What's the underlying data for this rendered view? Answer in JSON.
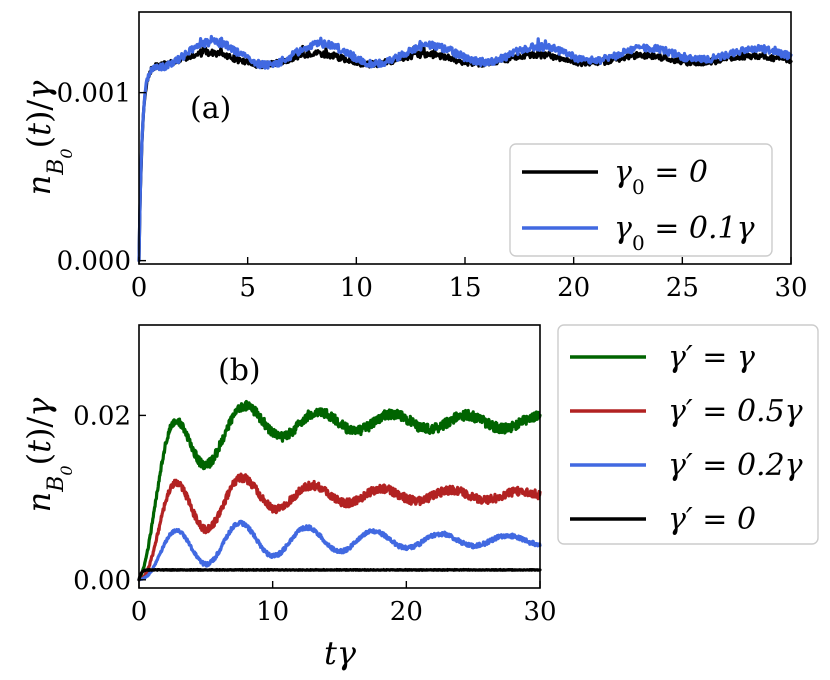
{
  "chart_data": [
    {
      "panel": "a",
      "type": "line",
      "panel_label": "(a)",
      "xlabel": "",
      "ylabel": "n_{B0}(t)/γ",
      "xlim": [
        0,
        30
      ],
      "ylim": [
        -2e-05,
        0.00148
      ],
      "xticks": [
        0,
        5,
        10,
        15,
        20,
        25,
        30
      ],
      "xtick_labels": [
        "0",
        "5",
        "10",
        "15",
        "20",
        "25",
        "30"
      ],
      "yticks": [
        0.0,
        0.001
      ],
      "ytick_labels": [
        "0.000",
        "0.001"
      ],
      "legend_position": "lower-right",
      "series": [
        {
          "name": "γ0 = 0",
          "label_main": "γ",
          "label_sub": "0",
          "label_rest": " = 0",
          "color": "#000000",
          "base": 0.0012,
          "amp": 4e-05,
          "period": 5.0,
          "phase": 3.2,
          "decay": 40,
          "spikes": 0.00012,
          "noise": 1.8e-05,
          "rise": 0.15
        },
        {
          "name": "γ0 = 0.1γ",
          "label_main": "γ",
          "label_sub": "0",
          "label_rest": " = 0.1γ",
          "color": "#4169E1",
          "base": 0.00123,
          "amp": 8e-05,
          "period": 5.0,
          "phase": 3.4,
          "decay": 30,
          "spikes": 6e-05,
          "noise": 2.2e-05,
          "rise": 0.15
        }
      ]
    },
    {
      "panel": "b",
      "type": "line",
      "panel_label": "(b)",
      "xlabel": "tγ",
      "ylabel": "n_{B0}(t)/γ",
      "xlim": [
        0,
        30
      ],
      "ylim": [
        -0.001,
        0.031
      ],
      "xticks": [
        0,
        10,
        20,
        30
      ],
      "xtick_labels": [
        "0",
        "10",
        "20",
        "30"
      ],
      "yticks": [
        0.0,
        0.02
      ],
      "ytick_labels": [
        "0.00",
        "0.02"
      ],
      "legend_position": "outside-right",
      "series": [
        {
          "name": "γ′ = γ",
          "label_main": "γ′",
          "label_rest": " = γ",
          "color": "#006400",
          "base": 0.0192,
          "amp": 0.0124,
          "period": 5.5,
          "phase": 2.5,
          "decay": 3.4,
          "noise": 0.0006,
          "rise": 2.0
        },
        {
          "name": "γ′ = 0.5γ",
          "label_main": "γ′",
          "label_rest": " = 0.5γ",
          "color": "#B22222",
          "base": 0.0103,
          "amp": 0.0085,
          "period": 5.2,
          "phase": 2.6,
          "decay": 4.5,
          "noise": 0.0005,
          "rise": 2.0
        },
        {
          "name": "γ′ = 0.2γ",
          "label_main": "γ′",
          "label_rest": " = 0.2γ",
          "color": "#4169E1",
          "base": 0.0048,
          "amp": 0.0036,
          "period": 5.0,
          "phase": 2.6,
          "decay": 12,
          "noise": 0.00025,
          "rise": 2.0
        },
        {
          "name": "γ′ = 0",
          "label_main": "γ′",
          "label_rest": " = 0",
          "color": "#000000",
          "base": 0.0012,
          "amp": 0.0,
          "period": 5.0,
          "phase": 0,
          "decay": 10,
          "noise": 4e-05,
          "rise": 0.15
        }
      ]
    }
  ]
}
